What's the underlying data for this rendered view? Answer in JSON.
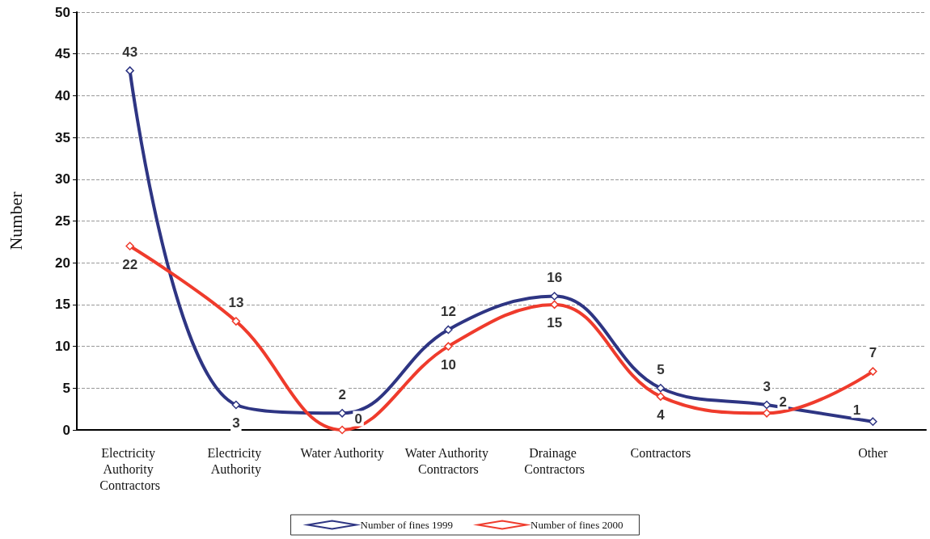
{
  "chart_data": {
    "type": "line",
    "ylabel": "Number",
    "categories": [
      "Electricity Authority Contractors",
      "Electricity Authority",
      "Water Authority",
      "Water Authority Contractors",
      "Drainage Contractors",
      "Contractors",
      null,
      "Other"
    ],
    "series": [
      {
        "name": "Number of fines 1999",
        "color": "#2e3583",
        "values": [
          43,
          3,
          2,
          12,
          16,
          5,
          3,
          1
        ]
      },
      {
        "name": "Number of fines 2000",
        "color": "#ef3b2c",
        "values": [
          22,
          13,
          0,
          10,
          15,
          4,
          2,
          7
        ]
      }
    ],
    "ylim": [
      0,
      50
    ],
    "yticks": [
      0,
      5,
      10,
      15,
      20,
      25,
      30,
      35,
      40,
      45,
      50
    ],
    "grid": "y",
    "legend": "bottom",
    "marker": "diamond",
    "line_style": "solid",
    "data_labels": true
  }
}
